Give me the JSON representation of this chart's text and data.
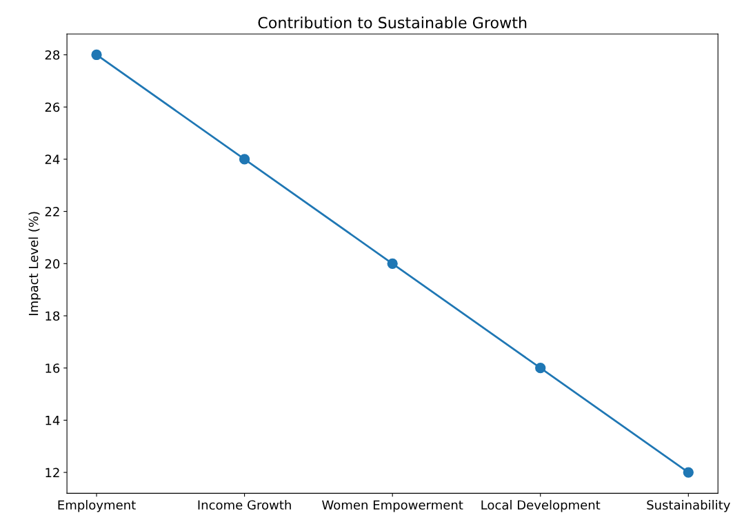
{
  "chart_data": {
    "type": "line",
    "title": "Contribution to Sustainable Growth",
    "ylabel": "Impact Level (%)",
    "categories": [
      "Employment",
      "Income Growth",
      "Women Empowerment",
      "Local Development",
      "Sustainability"
    ],
    "series": [
      {
        "color": "#1f77b4",
        "values": [
          28,
          24,
          20,
          16,
          12
        ]
      }
    ],
    "ylim": [
      11.2,
      28.8
    ],
    "yticks": [
      12,
      14,
      16,
      18,
      20,
      22,
      24,
      26,
      28
    ],
    "marker": "circle",
    "line_style": "solid"
  }
}
